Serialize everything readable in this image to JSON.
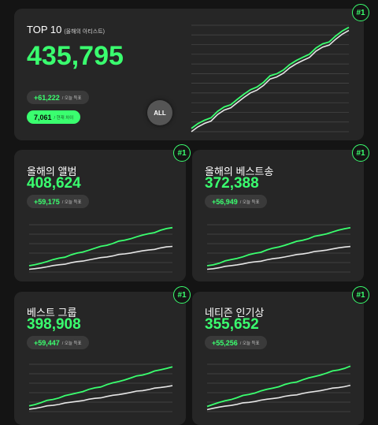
{
  "colors": {
    "accent": "#3aff6f",
    "card": "#262626",
    "bg": "#141414",
    "line_white": "#e6e6e6"
  },
  "top": {
    "badge": "#1",
    "title": "TOP 10",
    "title_sub": "(올해의 아티스트)",
    "value": "435,795",
    "delta": "+61,222",
    "delta_sub": "/ 오늘 득표",
    "votes": "7,061",
    "votes_sub": "/ 현재 차이",
    "all_label": "ALL"
  },
  "cards": [
    {
      "badge": "#1",
      "title": "올해의 앨범",
      "value": "408,624",
      "delta": "+59,175",
      "delta_sub": "/ 오늘 득표"
    },
    {
      "badge": "#1",
      "title": "올해의 베스트송",
      "value": "372,388",
      "delta": "+56,949",
      "delta_sub": "/ 오늘 득표"
    },
    {
      "badge": "#1",
      "title": "베스트 그룹",
      "value": "398,908",
      "delta": "+59,447",
      "delta_sub": "/ 오늘 득표"
    },
    {
      "badge": "#1",
      "title": "네티즌 인기상",
      "value": "355,652",
      "delta": "+55,256",
      "delta_sub": "/ 오늘 득표"
    }
  ]
}
